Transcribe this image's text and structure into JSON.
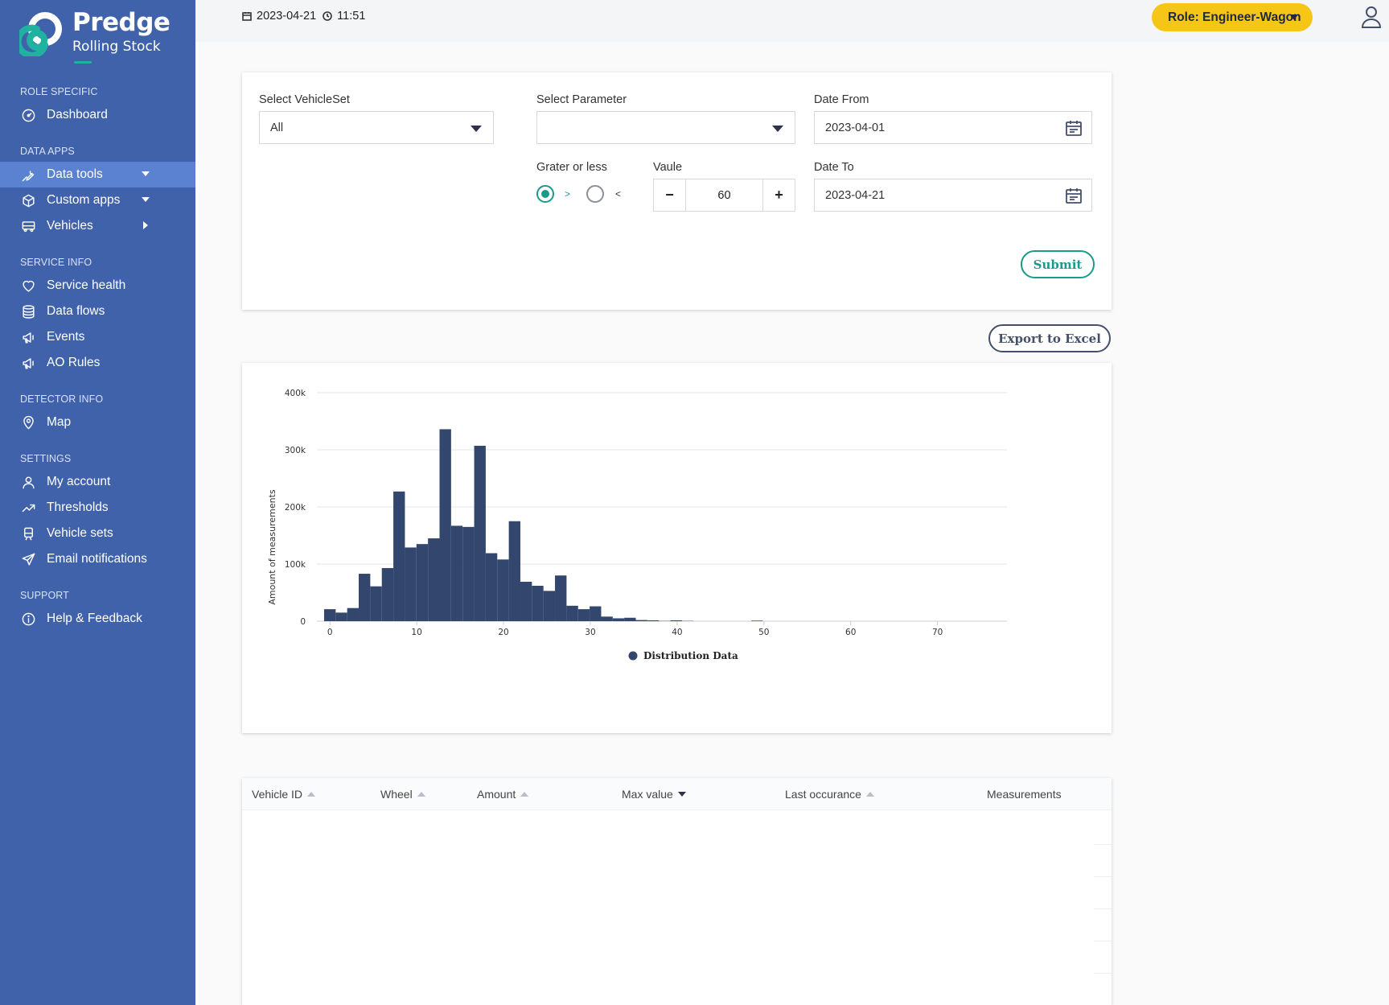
{
  "brand": {
    "title": "Predge",
    "subtitle": "Rolling Stock"
  },
  "sidebar": {
    "sections": [
      {
        "label": "ROLE SPECIFIC"
      },
      {
        "label": "DATA APPS"
      },
      {
        "label": "SERVICE INFO"
      },
      {
        "label": "DETECTOR INFO"
      },
      {
        "label": "SETTINGS"
      },
      {
        "label": "SUPPORT"
      }
    ],
    "items": [
      {
        "label": "Dashboard",
        "icon": "gauge-icon"
      },
      {
        "label": "Data tools",
        "icon": "wrench-icon"
      },
      {
        "label": "Custom apps",
        "icon": "cube-icon"
      },
      {
        "label": "Vehicles",
        "icon": "bus-icon"
      },
      {
        "label": "Service health",
        "icon": "heart-icon"
      },
      {
        "label": "Data flows",
        "icon": "database-icon"
      },
      {
        "label": "Events",
        "icon": "megaphone-icon"
      },
      {
        "label": "AO Rules",
        "icon": "megaphone-icon"
      },
      {
        "label": "Map",
        "icon": "map-pin-icon"
      },
      {
        "label": "My account",
        "icon": "user-icon"
      },
      {
        "label": "Thresholds",
        "icon": "trend-icon"
      },
      {
        "label": "Vehicle sets",
        "icon": "train-icon"
      },
      {
        "label": "Email notifications",
        "icon": "paper-plane-icon"
      },
      {
        "label": "Help & Feedback",
        "icon": "info-icon"
      }
    ]
  },
  "header": {
    "date": "2023-04-21",
    "time": "11:51",
    "role_label": "Role: Engineer-Wagon"
  },
  "filters": {
    "vehicleset_label": "Select VehicleSet",
    "vehicleset_value": "All",
    "parameter_label": "Select Parameter",
    "parameter_value": "",
    "date_from_label": "Date From",
    "date_from_value": "2023-04-01",
    "date_to_label": "Date To",
    "date_to_value": "2023-04-21",
    "comparison_label": "Grater or less",
    "greater_symbol": ">",
    "less_symbol": "<",
    "value_label": "Vaule",
    "value": "60",
    "minus": "−",
    "plus": "+",
    "submit_label": "Submit"
  },
  "export_label": "Export to Excel",
  "colors": {
    "bar": "#33466e",
    "accent": "#1a9a8c",
    "sidebar": "#3f62ab",
    "role": "#f5c518"
  },
  "chart_data": {
    "type": "bar",
    "title": "",
    "xlabel": "",
    "ylabel": "Amount of measurements",
    "legend": "Distribution Data",
    "bin_width": 1.33,
    "bin_start": -0.67,
    "x_ticks": [
      0,
      10,
      20,
      30,
      40,
      50,
      60,
      70
    ],
    "x_tick_labels": [
      "0",
      "10",
      "20",
      "30",
      "40",
      "50",
      "60",
      "70"
    ],
    "y_ticks": [
      0,
      100000,
      200000,
      300000,
      400000
    ],
    "y_tick_labels": [
      "0",
      "100k",
      "200k",
      "300k",
      "400k"
    ],
    "xlim": [
      -1.5,
      78
    ],
    "ylim": [
      0,
      400000
    ],
    "values": [
      21000,
      15000,
      23000,
      83000,
      61000,
      93000,
      227000,
      129000,
      135000,
      145000,
      336000,
      167000,
      165000,
      307000,
      119000,
      108000,
      175000,
      69000,
      62000,
      53000,
      80000,
      27000,
      21000,
      26000,
      8000,
      5000,
      6000,
      2000,
      1500,
      500,
      1500,
      500,
      0,
      0,
      0,
      0,
      0,
      1000
    ]
  },
  "table": {
    "columns": [
      {
        "label": "Vehicle ID",
        "sort": "up"
      },
      {
        "label": "Wheel",
        "sort": "up"
      },
      {
        "label": "Amount",
        "sort": "up"
      },
      {
        "label": "Max value",
        "sort": "down"
      },
      {
        "label": "Last occurance",
        "sort": "up"
      },
      {
        "label": "Measurements",
        "sort": "none"
      }
    ]
  }
}
